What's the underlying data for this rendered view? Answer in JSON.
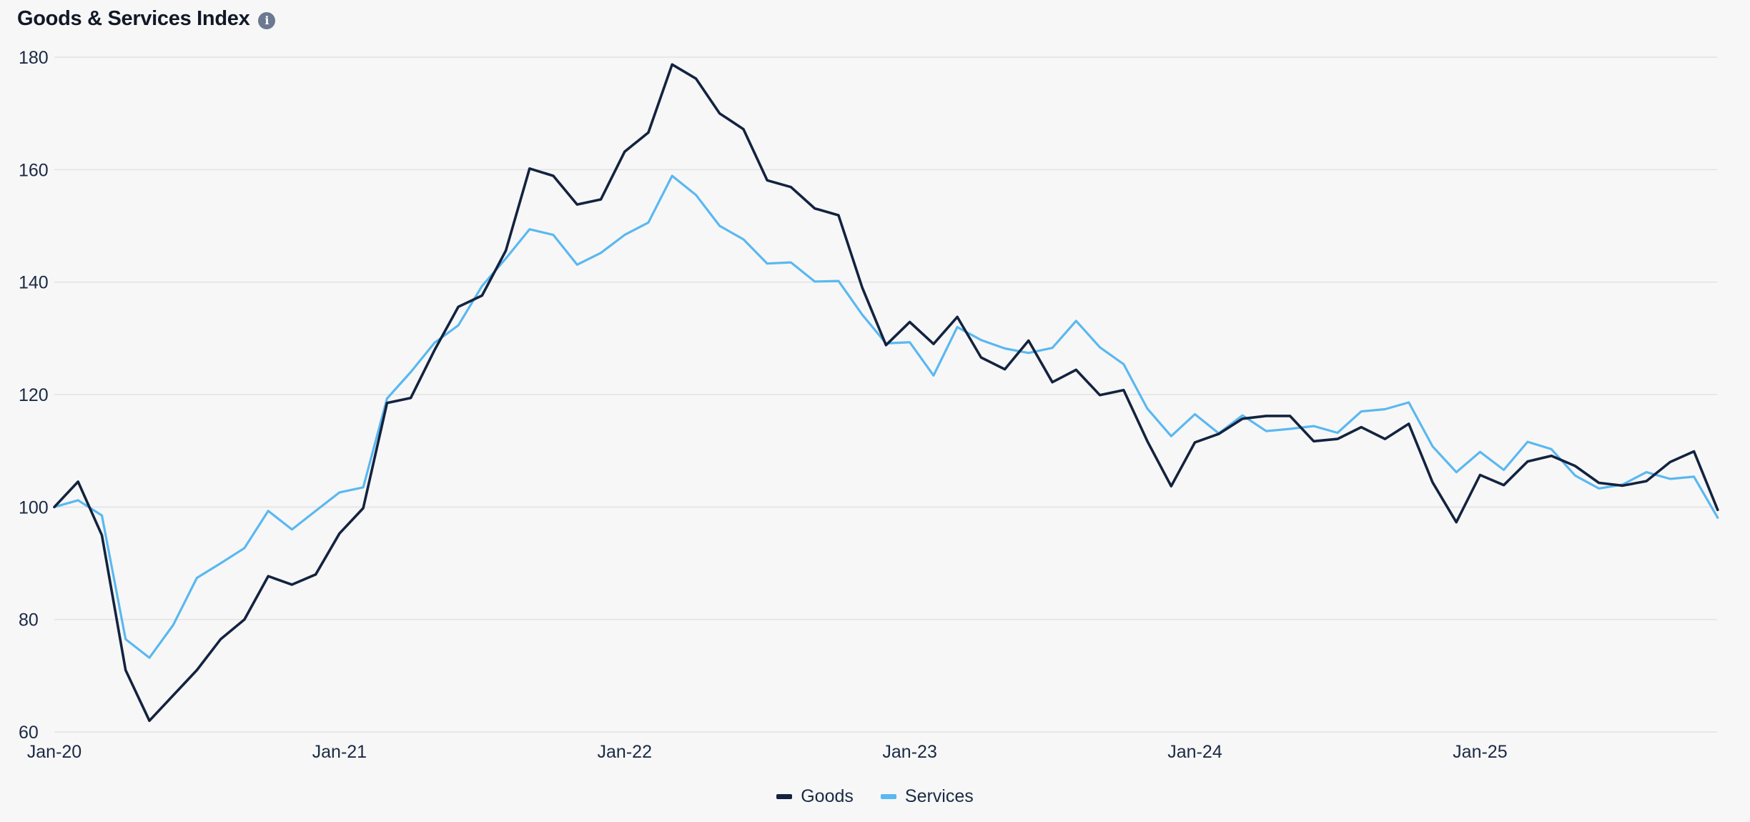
{
  "title": "Goods & Services Index",
  "info_icon": "info-icon",
  "info_glyph": "i",
  "colors": {
    "goods": "#13233f",
    "services": "#5ab8f0",
    "grid": "#e2e2e2",
    "background": "#f7f7f7"
  },
  "legend": {
    "goods_label": "Goods",
    "services_label": "Services",
    "placement": "bottom-center"
  },
  "chart_data": {
    "type": "line",
    "title": "Goods & Services Index",
    "xlabel": "",
    "ylabel": "",
    "ylim": [
      60,
      180
    ],
    "yticks": [
      60,
      80,
      100,
      120,
      140,
      160,
      180
    ],
    "xtick_labels": [
      "Jan-20",
      "Jan-21",
      "Jan-22",
      "Jan-23",
      "Jan-24",
      "Jan-25"
    ],
    "x_start": "Jan-20",
    "x_frequency": "monthly",
    "grid": "horizontal",
    "series": [
      {
        "name": "Goods",
        "color": "#13233f",
        "values": [
          100,
          104.5,
          95,
          71,
          62,
          66.5,
          71,
          76.5,
          80,
          87.7,
          86.2,
          88,
          95.3,
          99.8,
          118.5,
          119.4,
          127.9,
          135.6,
          137.6,
          145.6,
          160.2,
          158.9,
          153.8,
          154.7,
          163.2,
          166.6,
          178.7,
          176.2,
          170,
          167.2,
          158.1,
          156.9,
          153.1,
          151.9,
          139,
          128.8,
          132.9,
          129,
          133.8,
          126.6,
          124.5,
          129.6,
          122.2,
          124.4,
          119.9,
          120.8,
          111.7,
          103.7,
          111.5,
          113,
          115.7,
          116.2,
          116.2,
          111.7,
          112.1,
          114.2,
          112.1,
          114.8,
          104.4,
          97.3,
          105.7,
          103.9,
          108.1,
          109.1,
          107.3,
          104.3,
          103.8,
          104.6,
          108,
          109.9,
          99.5
        ]
      },
      {
        "name": "Services",
        "color": "#5ab8f0",
        "values": [
          100,
          101.2,
          98.5,
          76.5,
          73.2,
          79,
          87.4,
          90,
          92.7,
          99.3,
          96,
          99.3,
          102.6,
          103.5,
          119.3,
          124,
          129.2,
          132.3,
          139.3,
          144.2,
          149.4,
          148.4,
          143.1,
          145.2,
          148.4,
          150.6,
          158.9,
          155.5,
          150,
          147.6,
          143.3,
          143.5,
          140.1,
          140.2,
          134.2,
          129.1,
          129.3,
          123.4,
          132,
          129.7,
          128.2,
          127.4,
          128.3,
          133.1,
          128.4,
          125.4,
          117.5,
          112.6,
          116.5,
          113.1,
          116.3,
          113.5,
          113.9,
          114.4,
          113.2,
          117,
          117.4,
          118.6,
          110.8,
          106.2,
          109.8,
          106.6,
          111.6,
          110.3,
          105.6,
          103.3,
          104,
          106.2,
          105,
          105.4,
          98.1
        ]
      }
    ]
  }
}
